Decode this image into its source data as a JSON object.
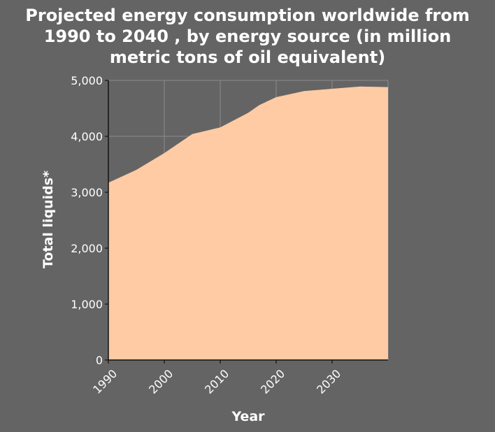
{
  "chart_data": {
    "type": "area",
    "title_lines": [
      "Projected energy consumption worldwide from",
      "1990 to 2040 , by energy source (in million",
      "metric tons of oil equivalent)"
    ],
    "xlabel": "Year",
    "ylabel": "Total liquids*",
    "xlim": [
      1990,
      2040
    ],
    "ylim": [
      0,
      5000
    ],
    "x_ticks": [
      1990,
      2000,
      2010,
      2020,
      2030
    ],
    "y_ticks": [
      0,
      1000,
      2000,
      3000,
      4000,
      5000
    ],
    "x_tick_labels": [
      "1990",
      "2000",
      "2010",
      "2020",
      "2030"
    ],
    "y_tick_labels": [
      "0",
      "1,000",
      "2,000",
      "3,000",
      "4,000",
      "5,000"
    ],
    "grid": true,
    "series": [
      {
        "x": [
          1990,
          1995,
          2000,
          2005,
          2010,
          2015,
          2017,
          2020,
          2025,
          2030,
          2035,
          2040
        ],
        "y": [
          3170,
          3400,
          3700,
          4040,
          4160,
          4420,
          4560,
          4700,
          4810,
          4850,
          4890,
          4880
        ]
      }
    ],
    "colors": {
      "background": "#646464",
      "area_fill": "#ffcba4",
      "grid": "#8c8c8c",
      "text": "#ffffff"
    }
  }
}
